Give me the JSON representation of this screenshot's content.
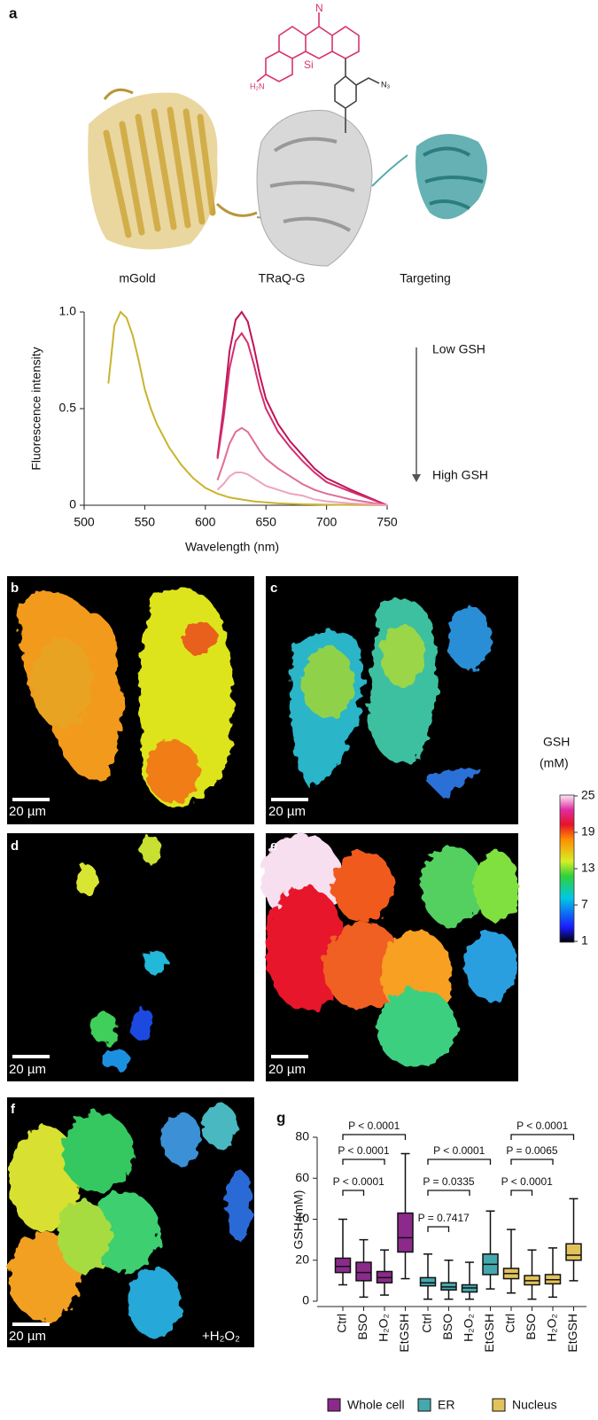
{
  "panel_labels": [
    "a",
    "b",
    "c",
    "d",
    "e",
    "f",
    "g"
  ],
  "molecule_labels": [
    "N",
    "Si",
    "H₂N",
    "N₃"
  ],
  "structure_labels": [
    "mGold",
    "TRaQ-G",
    "Targeting"
  ],
  "images": [
    {
      "scale_bar": "20 µm"
    },
    {
      "scale_bar": "20 µm"
    },
    {
      "scale_bar": "20 µm"
    },
    {
      "scale_bar": "20 µm"
    },
    {
      "scale_bar": "20 µm",
      "treatment": "+H₂O₂"
    }
  ],
  "colorbar": {
    "title": "GSH",
    "unit": "(mM)",
    "range": [
      1,
      25
    ],
    "ticks": [
      25,
      19,
      13,
      7,
      1
    ]
  },
  "chart_data": [
    {
      "type": "line",
      "x_label": "Wavelength (nm)",
      "y_label": "Fluorescence intensity",
      "xlim": [
        500,
        750
      ],
      "xticks": [
        500,
        550,
        600,
        650,
        700,
        750
      ],
      "ylim": [
        0,
        1
      ],
      "yticks": [
        0,
        0.5,
        {
          "value": 1,
          "label": "1.0"
        }
      ],
      "annotations": {
        "top": "Low GSH",
        "bottom": "High GSH"
      },
      "series": [
        {
          "color": "#c9b42e",
          "x": [
            520,
            525,
            530,
            535,
            540,
            545,
            550,
            555,
            560,
            565,
            570,
            580,
            590,
            600,
            610,
            620,
            630,
            640,
            650,
            660,
            680,
            700,
            750
          ],
          "values": [
            0.63,
            0.93,
            1.0,
            0.97,
            0.88,
            0.75,
            0.6,
            0.5,
            0.42,
            0.36,
            0.3,
            0.21,
            0.14,
            0.09,
            0.06,
            0.04,
            0.03,
            0.02,
            0.015,
            0.01,
            0.005,
            0.003,
            0
          ]
        },
        {
          "color": "#c0135a",
          "x": [
            610,
            615,
            620,
            625,
            630,
            635,
            640,
            645,
            650,
            660,
            670,
            680,
            690,
            700,
            720,
            750
          ],
          "values": [
            0.25,
            0.5,
            0.8,
            0.96,
            1.0,
            0.95,
            0.82,
            0.67,
            0.55,
            0.42,
            0.33,
            0.26,
            0.19,
            0.14,
            0.08,
            0
          ]
        },
        {
          "color": "#d42e6e",
          "x": [
            610,
            615,
            620,
            625,
            630,
            635,
            640,
            645,
            650,
            660,
            670,
            680,
            690,
            700,
            720,
            750
          ],
          "values": [
            0.24,
            0.45,
            0.71,
            0.85,
            0.89,
            0.84,
            0.73,
            0.6,
            0.5,
            0.38,
            0.3,
            0.23,
            0.17,
            0.12,
            0.07,
            0
          ]
        },
        {
          "color": "#e06d98",
          "x": [
            610,
            615,
            620,
            625,
            630,
            635,
            640,
            645,
            650,
            660,
            670,
            680,
            690,
            700,
            720,
            750
          ],
          "values": [
            0.13,
            0.22,
            0.32,
            0.38,
            0.4,
            0.38,
            0.33,
            0.28,
            0.24,
            0.19,
            0.15,
            0.11,
            0.08,
            0.06,
            0.03,
            0
          ]
        },
        {
          "color": "#eea3bf",
          "x": [
            610,
            615,
            620,
            625,
            630,
            635,
            640,
            645,
            650,
            660,
            670,
            680,
            690,
            700,
            720,
            750
          ],
          "values": [
            0.08,
            0.11,
            0.15,
            0.17,
            0.17,
            0.16,
            0.14,
            0.12,
            0.1,
            0.08,
            0.06,
            0.05,
            0.03,
            0.02,
            0.01,
            0
          ]
        }
      ]
    },
    {
      "type": "box",
      "y_label": "GSH (mM)",
      "ylim": [
        0,
        80
      ],
      "yticks": [
        0,
        20,
        40,
        60,
        80
      ],
      "categories": [
        "Ctrl",
        "BSO",
        "H₂O₂",
        "EtGSH"
      ],
      "annotations": [
        "P < 0.0001",
        "P < 0.0001",
        "P < 0.0001",
        "P = 0.7417",
        "P = 0.0335",
        "P < 0.0001",
        "P < 0.0001",
        "P = 0.0065",
        "P < 0.0001"
      ],
      "series": [
        {
          "name": "Whole cell",
          "color": "#8b2a8b",
          "values": [
            {
              "min": 8,
              "q1": 14,
              "median": 17,
              "q3": 21,
              "max": 40
            },
            {
              "min": 2,
              "q1": 10,
              "median": 14,
              "q3": 19,
              "max": 30
            },
            {
              "min": 3,
              "q1": 9,
              "median": 11.5,
              "q3": 14.5,
              "max": 25
            },
            {
              "min": 11,
              "q1": 24,
              "median": 31,
              "q3": 43,
              "max": 72
            }
          ]
        },
        {
          "name": "ER",
          "color": "#45a8ad",
          "values": [
            {
              "min": 1,
              "q1": 7.5,
              "median": 9,
              "q3": 11.5,
              "max": 23
            },
            {
              "min": 1,
              "q1": 5.5,
              "median": 7,
              "q3": 9,
              "max": 20
            },
            {
              "min": 1,
              "q1": 4.5,
              "median": 6.5,
              "q3": 8,
              "max": 19
            },
            {
              "min": 6,
              "q1": 13,
              "median": 18,
              "q3": 23,
              "max": 44
            }
          ]
        },
        {
          "name": "Nucleus",
          "color": "#e2c25a",
          "values": [
            {
              "min": 4,
              "q1": 11,
              "median": 13.5,
              "q3": 16,
              "max": 35
            },
            {
              "min": 1,
              "q1": 8,
              "median": 10,
              "q3": 12.5,
              "max": 25
            },
            {
              "min": 2,
              "q1": 8.5,
              "median": 10.5,
              "q3": 13,
              "max": 26
            },
            {
              "min": 10,
              "q1": 20,
              "median": 22.5,
              "q3": 28,
              "max": 50
            }
          ]
        }
      ]
    }
  ]
}
